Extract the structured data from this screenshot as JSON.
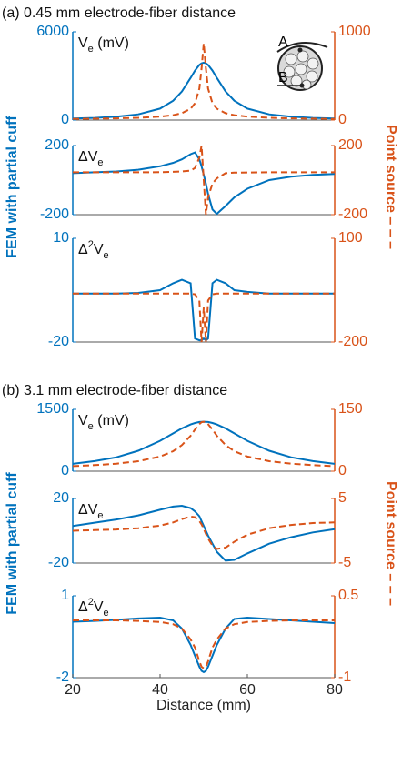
{
  "chart_data": [
    {
      "type": "line",
      "title": "(a) 0.45 mm electrode-fiber distance",
      "annotation": [
        {
          "text": "V"
        },
        {
          "text": "e",
          "sub": true
        },
        {
          "text": " (mV)"
        }
      ],
      "inset_labels": [
        "A",
        "B"
      ],
      "x": [
        20,
        25,
        30,
        35,
        40,
        43,
        45,
        47,
        48,
        49,
        49.5,
        50,
        50.5,
        51,
        52,
        53,
        55,
        57,
        60,
        65,
        70,
        75,
        80
      ],
      "xlim": [
        20,
        80
      ],
      "ylim": [
        0,
        6000
      ],
      "yticks": [
        0,
        6000
      ],
      "y2lim": [
        0,
        1000
      ],
      "y2ticks": [
        0,
        1000
      ],
      "series": [
        {
          "color": "#0072BD",
          "linestyle": "solid",
          "values": [
            105,
            150,
            229,
            390,
            780,
            1316,
            1950,
            2868,
            3362,
            3750,
            3861,
            3900,
            3861,
            3750,
            3362,
            2868,
            1950,
            1316,
            780,
            390,
            229,
            150,
            105
          ]
        },
        {
          "color": "#D95319",
          "linestyle": "dashed",
          "axis": "y2",
          "values": [
            13,
            16,
            20,
            26,
            39,
            56,
            78,
            129,
            191,
            357,
            583,
            869,
            583,
            357,
            191,
            129,
            78,
            56,
            39,
            26,
            20,
            16,
            13
          ]
        }
      ]
    },
    {
      "type": "line",
      "annotation": [
        {
          "text": "ΔV"
        },
        {
          "text": "e",
          "sub": true
        }
      ],
      "ylabel": "FEM with partial cuff",
      "y2label": "Point source – – –",
      "x": [
        20,
        25,
        30,
        35,
        40,
        43,
        45,
        47,
        48,
        49,
        49.5,
        50,
        50.5,
        51,
        52,
        53,
        55,
        57,
        60,
        65,
        70,
        75,
        80
      ],
      "xlim": [
        20,
        80
      ],
      "ylim": [
        -200,
        200
      ],
      "yticks": [
        -200,
        200
      ],
      "y2lim": [
        -200,
        200
      ],
      "y2ticks": [
        -200,
        200
      ],
      "series": [
        {
          "color": "#0072BD",
          "linestyle": "solid",
          "values": [
            40,
            45,
            50,
            60,
            80,
            100,
            120,
            150,
            160,
            120,
            80,
            30,
            -20,
            -80,
            -170,
            -195,
            -150,
            -100,
            -50,
            0,
            20,
            30,
            35
          ]
        },
        {
          "color": "#D95319",
          "linestyle": "dashed",
          "axis": "y2",
          "values": [
            45,
            45,
            45,
            45,
            46,
            48,
            50,
            55,
            70,
            130,
            200,
            0,
            -200,
            -100,
            -20,
            10,
            40,
            43,
            44,
            45,
            45,
            45,
            45
          ]
        }
      ]
    },
    {
      "type": "line",
      "annotation": [
        {
          "text": "Δ"
        },
        {
          "text": "2",
          "sup": true
        },
        {
          "text": "V"
        },
        {
          "text": "e",
          "sub": true
        }
      ],
      "x": [
        20,
        25,
        30,
        35,
        40,
        43,
        45,
        47,
        48,
        49,
        49.5,
        50,
        50.5,
        51,
        52,
        53,
        55,
        57,
        60,
        65,
        70,
        75,
        80
      ],
      "xlim": [
        20,
        80
      ],
      "ylim": [
        -20,
        10
      ],
      "yticks": [
        -20,
        10
      ],
      "y2lim": [
        -200,
        100
      ],
      "y2ticks": [
        -200,
        100
      ],
      "series": [
        {
          "color": "#0072BD",
          "linestyle": "solid",
          "values": [
            -6,
            -6,
            -6,
            -5.8,
            -5,
            -3,
            -2,
            -3,
            -19,
            -19.5,
            -19.5,
            -19,
            -19.5,
            -19,
            -3,
            -2,
            -3,
            -5,
            -5.5,
            -6,
            -6,
            -6,
            -6
          ]
        },
        {
          "color": "#D95319",
          "linestyle": "dashed",
          "axis": "y2",
          "values": [
            -60,
            -60,
            -60,
            -60,
            -60,
            -60,
            -60,
            -60,
            -62,
            -80,
            -200,
            -100,
            -200,
            -80,
            -62,
            -60,
            -60,
            -60,
            -60,
            -60,
            -60,
            -60,
            -60
          ]
        }
      ]
    },
    {
      "type": "line",
      "title": "(b) 3.1 mm electrode-fiber distance",
      "annotation": [
        {
          "text": "V"
        },
        {
          "text": "e",
          "sub": true
        },
        {
          "text": " (mV)"
        }
      ],
      "x": [
        20,
        25,
        30,
        35,
        40,
        43,
        45,
        47,
        48,
        49,
        49.5,
        50,
        50.5,
        51,
        52,
        53,
        55,
        57,
        60,
        65,
        70,
        75,
        80
      ],
      "xlim": [
        20,
        80
      ],
      "ylim": [
        0,
        1500
      ],
      "yticks": [
        0,
        1500
      ],
      "y2lim": [
        0,
        150
      ],
      "y2ticks": [
        0,
        150
      ],
      "series": [
        {
          "color": "#0072BD",
          "linestyle": "solid",
          "values": [
            179,
            245,
            337,
            496,
            737,
            917,
            1038,
            1134,
            1170,
            1193,
            1198,
            1200,
            1198,
            1193,
            1170,
            1134,
            1038,
            917,
            737,
            496,
            337,
            245,
            179
          ]
        },
        {
          "color": "#D95319",
          "linestyle": "dashed",
          "axis": "y2",
          "values": [
            12.3,
            14.8,
            18.4,
            24.3,
            35.5,
            48.5,
            63.2,
            86,
            101,
            114,
            119,
            120,
            119,
            114,
            101,
            86,
            63.2,
            48.5,
            35.5,
            24.3,
            18.4,
            14.8,
            12.3
          ]
        }
      ]
    },
    {
      "type": "line",
      "annotation": [
        {
          "text": "ΔV"
        },
        {
          "text": "e",
          "sub": true
        }
      ],
      "ylabel": "FEM with partial cuff",
      "y2label": "Point source – – –",
      "x": [
        20,
        25,
        30,
        35,
        40,
        43,
        45,
        47,
        48,
        49,
        49.5,
        50,
        50.5,
        51,
        52,
        53,
        55,
        57,
        60,
        65,
        70,
        75,
        80
      ],
      "xlim": [
        20,
        80
      ],
      "ylim": [
        -20,
        20
      ],
      "yticks": [
        -20,
        20
      ],
      "y2lim": [
        -5,
        5
      ],
      "y2ticks": [
        -5,
        5
      ],
      "series": [
        {
          "color": "#0072BD",
          "linestyle": "solid",
          "values": [
            3,
            5,
            7,
            9.5,
            13,
            15,
            15.5,
            14,
            12,
            9,
            6,
            3,
            0,
            -3,
            -8,
            -13,
            -18.5,
            -18,
            -14,
            -8,
            -4,
            -1,
            1
          ]
        },
        {
          "color": "#D95319",
          "linestyle": "dashed",
          "axis": "y2",
          "values": [
            0,
            0.1,
            0.2,
            0.4,
            0.8,
            1.3,
            1.8,
            2.2,
            2.1,
            1.5,
            1,
            0.3,
            -0.5,
            -1.2,
            -2.3,
            -2.8,
            -2.6,
            -1.7,
            -0.6,
            0.4,
            0.9,
            1.2,
            1.3
          ]
        }
      ]
    },
    {
      "type": "line",
      "annotation": [
        {
          "text": "Δ"
        },
        {
          "text": "2",
          "sup": true
        },
        {
          "text": "V"
        },
        {
          "text": "e",
          "sub": true
        }
      ],
      "xlabel": "Distance (mm)",
      "x": [
        20,
        25,
        30,
        35,
        40,
        43,
        45,
        47,
        48,
        49,
        49.5,
        50,
        50.5,
        51,
        52,
        53,
        55,
        57,
        60,
        65,
        70,
        75,
        80
      ],
      "xlim": [
        20,
        80
      ],
      "xticks": [
        20,
        40,
        60,
        80
      ],
      "ylim": [
        -2,
        1
      ],
      "yticks": [
        -2,
        1
      ],
      "y2lim": [
        -1,
        0.5
      ],
      "y2ticks": [
        -1,
        0.5
      ],
      "series": [
        {
          "color": "#0072BD",
          "linestyle": "solid",
          "values": [
            0.05,
            0.08,
            0.12,
            0.17,
            0.2,
            0.1,
            -0.2,
            -0.8,
            -1.2,
            -1.6,
            -1.75,
            -1.8,
            -1.75,
            -1.6,
            -1.2,
            -0.8,
            -0.2,
            0.15,
            0.2,
            0.15,
            0.1,
            0.05,
            0
          ]
        },
        {
          "color": "#D95319",
          "linestyle": "dashed",
          "axis": "y2",
          "values": [
            0.05,
            0.05,
            0.05,
            0.04,
            0.02,
            -0.02,
            -0.1,
            -0.3,
            -0.45,
            -0.7,
            -0.8,
            -0.83,
            -0.8,
            -0.7,
            -0.45,
            -0.3,
            -0.1,
            -0.02,
            0.02,
            0.04,
            0.05,
            0.05,
            0.05
          ]
        }
      ]
    }
  ]
}
